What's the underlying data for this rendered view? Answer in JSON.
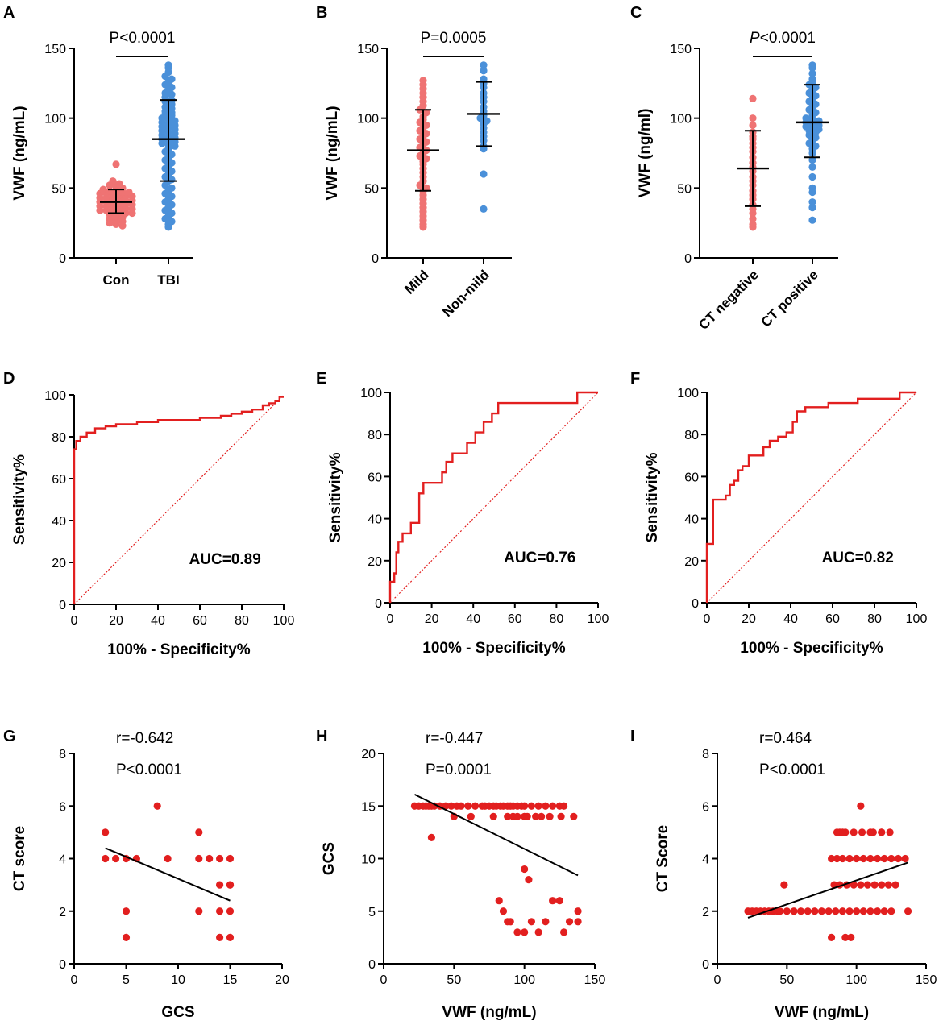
{
  "colors": {
    "red_dot": "#EF7373",
    "blue_dot": "#4A90D9",
    "roc_line": "#E21F1F",
    "scatter_dot": "#E21F1F",
    "axis": "#000000"
  },
  "chart_data": [
    {
      "panel": "A",
      "type": "scatter",
      "title": "P<0.0001",
      "title_italic_p": false,
      "xlabel": "",
      "ylabel": "VWF  (ng/mL)",
      "ylim": [
        0,
        150
      ],
      "yticks": [
        0,
        50,
        100,
        150
      ],
      "categories": [
        "Con",
        "TBI"
      ],
      "tick_rotate": false,
      "groups": [
        {
          "name": "Con",
          "color": "red",
          "mean": 40,
          "sd_low": 32,
          "sd_high": 49,
          "values": [
            67,
            55,
            53,
            52,
            51,
            50,
            49,
            48,
            48,
            47,
            47,
            46,
            46,
            45,
            45,
            44,
            44,
            43,
            43,
            42,
            42,
            41,
            41,
            40,
            40,
            39,
            39,
            38,
            38,
            37,
            37,
            36,
            36,
            35,
            35,
            34,
            34,
            33,
            33,
            32,
            32,
            31,
            30,
            29,
            28,
            27,
            26,
            25,
            24,
            23
          ]
        },
        {
          "name": "TBI",
          "color": "blue",
          "mean": 85,
          "sd_low": 55,
          "sd_high": 113,
          "values": [
            138,
            136,
            133,
            130,
            128,
            126,
            124,
            122,
            120,
            118,
            117,
            115,
            113,
            112,
            110,
            108,
            107,
            105,
            104,
            103,
            102,
            100,
            99,
            98,
            97,
            96,
            95,
            94,
            93,
            92,
            91,
            90,
            89,
            88,
            87,
            86,
            85,
            84,
            83,
            82,
            81,
            80,
            78,
            76,
            74,
            72,
            70,
            68,
            66,
            64,
            62,
            60,
            58,
            56,
            55,
            52,
            50,
            48,
            46,
            44,
            42,
            40,
            38,
            36,
            34,
            32,
            30,
            28,
            26,
            24,
            22
          ]
        }
      ]
    },
    {
      "panel": "B",
      "type": "scatter",
      "title": "P=0.0005",
      "title_italic_p": false,
      "xlabel": "",
      "ylabel": "VWF  (ng/mL)",
      "ylim": [
        0,
        150
      ],
      "yticks": [
        0,
        50,
        100,
        150
      ],
      "categories": [
        "Mild",
        "Non-mild"
      ],
      "tick_rotate": true,
      "groups": [
        {
          "name": "Mild",
          "color": "red",
          "mean": 77,
          "sd_low": 48,
          "sd_high": 106,
          "values": [
            127,
            124,
            121,
            118,
            115,
            112,
            109,
            106,
            104,
            101,
            99,
            97,
            95,
            93,
            91,
            89,
            87,
            85,
            83,
            81,
            79,
            77,
            75,
            73,
            71,
            69,
            67,
            64,
            61,
            58,
            55,
            52,
            50,
            48,
            45,
            42,
            39,
            36,
            33,
            30,
            27,
            24,
            22
          ]
        },
        {
          "name": "Non-mild",
          "color": "blue",
          "mean": 103,
          "sd_low": 80,
          "sd_high": 126,
          "values": [
            138,
            134,
            128,
            125,
            122,
            118,
            115,
            112,
            108,
            105,
            102,
            100,
            98,
            96,
            93,
            90,
            87,
            84,
            80,
            78,
            60,
            35
          ]
        }
      ]
    },
    {
      "panel": "C",
      "type": "scatter",
      "title": "P<0.0001",
      "title_italic_p": true,
      "xlabel": "",
      "ylabel": "VWF  (ng/ml)",
      "ylim": [
        0,
        150
      ],
      "yticks": [
        0,
        50,
        100,
        150
      ],
      "categories": [
        "CT negative",
        "CT positive"
      ],
      "tick_rotate": true,
      "groups": [
        {
          "name": "CT negative",
          "color": "red",
          "mean": 64,
          "sd_low": 37,
          "sd_high": 91,
          "values": [
            114,
            100,
            95,
            90,
            87,
            85,
            82,
            79,
            76,
            72,
            68,
            65,
            62,
            58,
            55,
            52,
            48,
            45,
            42,
            38,
            35,
            32,
            28,
            24,
            22
          ]
        },
        {
          "name": "CT positive",
          "color": "blue",
          "mean": 97,
          "sd_low": 72,
          "sd_high": 124,
          "values": [
            138,
            136,
            132,
            128,
            126,
            124,
            122,
            120,
            118,
            116,
            114,
            112,
            110,
            108,
            106,
            104,
            102,
            100,
            99,
            98,
            97,
            96,
            95,
            94,
            93,
            92,
            91,
            90,
            88,
            86,
            84,
            82,
            80,
            78,
            75,
            70,
            65,
            58,
            50,
            47,
            40,
            36,
            27
          ]
        }
      ]
    },
    {
      "panel": "D",
      "type": "line",
      "annotation": "AUC=0.89",
      "xlabel": "100% - Specificity%",
      "ylabel": "Sensitivity%",
      "xlim": [
        0,
        100
      ],
      "ylim": [
        0,
        100
      ],
      "xticks": [
        0,
        20,
        40,
        60,
        80,
        100
      ],
      "yticks": [
        0,
        20,
        40,
        60,
        80,
        100
      ],
      "x": [
        0,
        0,
        1,
        1,
        3,
        3,
        6,
        6,
        10,
        10,
        15,
        15,
        20,
        20,
        30,
        30,
        40,
        40,
        60,
        60,
        70,
        70,
        75,
        75,
        80,
        80,
        85,
        85,
        90,
        90,
        93,
        93,
        96,
        96,
        98,
        98,
        100
      ],
      "y": [
        0,
        74,
        74,
        78,
        78,
        80,
        80,
        82,
        82,
        84,
        84,
        85,
        85,
        86,
        86,
        87,
        87,
        88,
        88,
        89,
        89,
        90,
        90,
        91,
        91,
        92,
        92,
        93,
        93,
        95,
        95,
        96,
        96,
        97,
        97,
        99,
        99
      ]
    },
    {
      "panel": "E",
      "type": "line",
      "annotation": "AUC=0.76",
      "xlabel": "100% - Specificity%",
      "ylabel": "Sensitivity%",
      "xlim": [
        0,
        100
      ],
      "ylim": [
        0,
        100
      ],
      "xticks": [
        0,
        20,
        40,
        60,
        80,
        100
      ],
      "yticks": [
        0,
        20,
        40,
        60,
        80,
        100
      ],
      "x": [
        0,
        0,
        2,
        2,
        3,
        3,
        4,
        4,
        6,
        6,
        10,
        10,
        14,
        14,
        16,
        16,
        25,
        25,
        27,
        27,
        30,
        30,
        37,
        37,
        41,
        41,
        45,
        45,
        49,
        49,
        52,
        52,
        90,
        90,
        100
      ],
      "y": [
        0,
        10,
        10,
        14,
        14,
        24,
        24,
        29,
        29,
        33,
        33,
        38,
        38,
        52,
        52,
        57,
        57,
        62,
        62,
        67,
        67,
        71,
        71,
        76,
        76,
        81,
        81,
        86,
        86,
        90,
        90,
        95,
        95,
        100,
        100
      ]
    },
    {
      "panel": "F",
      "type": "line",
      "annotation": "AUC=0.82",
      "xlabel": "100% - Specificity%",
      "ylabel": "Sensitivity%",
      "xlim": [
        0,
        100
      ],
      "ylim": [
        0,
        100
      ],
      "xticks": [
        0,
        20,
        40,
        60,
        80,
        100
      ],
      "yticks": [
        0,
        20,
        40,
        60,
        80,
        100
      ],
      "x": [
        0,
        0,
        3,
        3,
        9,
        9,
        11,
        11,
        13,
        13,
        15,
        15,
        17,
        17,
        20,
        20,
        27,
        27,
        30,
        30,
        34,
        34,
        38,
        38,
        41,
        41,
        43,
        43,
        47,
        47,
        58,
        58,
        72,
        72,
        92,
        92,
        100
      ],
      "y": [
        0,
        28,
        28,
        49,
        49,
        51,
        51,
        56,
        56,
        58,
        58,
        63,
        63,
        65,
        65,
        70,
        70,
        74,
        74,
        77,
        77,
        79,
        79,
        81,
        81,
        86,
        86,
        91,
        91,
        93,
        93,
        95,
        95,
        97,
        97,
        100,
        100
      ]
    },
    {
      "panel": "G",
      "type": "scatter",
      "annotation_r": "r=-0.642",
      "annotation_p": "P<0.0001",
      "xlabel": "GCS",
      "ylabel": "CT score",
      "xlim": [
        0,
        20
      ],
      "ylim": [
        0,
        8
      ],
      "xticks": [
        0,
        5,
        10,
        15,
        20
      ],
      "yticks": [
        0,
        2,
        4,
        6,
        8
      ],
      "x": [
        3,
        3,
        4,
        5,
        5,
        5,
        6,
        8,
        9,
        12,
        12,
        12,
        13,
        14,
        14,
        14,
        14,
        15,
        15,
        15,
        15,
        15
      ],
      "y": [
        5,
        4,
        4,
        4,
        2,
        1,
        4,
        6,
        4,
        5,
        4,
        2,
        4,
        4,
        3,
        2,
        1,
        4,
        3,
        2,
        1,
        3
      ],
      "fit": {
        "x": [
          3,
          15
        ],
        "y": [
          4.4,
          2.4
        ]
      }
    },
    {
      "panel": "H",
      "type": "scatter",
      "annotation_r": "r=-0.447",
      "annotation_p": "P=0.0001",
      "xlabel": "VWF (ng/mL)",
      "ylabel": "GCS",
      "xlim": [
        0,
        150
      ],
      "ylim": [
        0,
        20
      ],
      "xticks": [
        0,
        50,
        100,
        150
      ],
      "yticks": [
        0,
        5,
        10,
        15,
        20
      ],
      "x": [
        22,
        25,
        28,
        30,
        32,
        34,
        36,
        40,
        44,
        48,
        52,
        55,
        60,
        65,
        70,
        72,
        75,
        78,
        80,
        83,
        85,
        88,
        90,
        92,
        95,
        98,
        100,
        105,
        110,
        115,
        120,
        125,
        128,
        34,
        50,
        62,
        78,
        88,
        92,
        95,
        100,
        102,
        108,
        112,
        118,
        126,
        135,
        100,
        103,
        82,
        85,
        88,
        90,
        95,
        100,
        105,
        110,
        115,
        120,
        125,
        128,
        132,
        138,
        138
      ],
      "y": [
        15,
        15,
        15,
        15,
        15,
        15,
        15,
        15,
        15,
        15,
        15,
        15,
        15,
        15,
        15,
        15,
        15,
        15,
        15,
        15,
        15,
        15,
        15,
        15,
        15,
        15,
        15,
        15,
        15,
        15,
        15,
        15,
        15,
        12,
        14,
        14,
        14,
        14,
        14,
        14,
        14,
        14,
        14,
        14,
        14,
        14,
        14,
        9,
        8,
        6,
        5,
        4,
        4,
        3,
        3,
        4,
        3,
        4,
        6,
        6,
        3,
        4,
        5,
        4
      ],
      "fit": {
        "x": [
          22,
          138
        ],
        "y": [
          16.1,
          8.4
        ]
      }
    },
    {
      "panel": "I",
      "type": "scatter",
      "annotation_r": "r=0.464",
      "annotation_p": "P<0.0001",
      "xlabel": "VWF (ng/mL)",
      "ylabel": "CT Score",
      "xlim": [
        0,
        150
      ],
      "ylim": [
        0,
        8
      ],
      "xticks": [
        0,
        50,
        100,
        150
      ],
      "yticks": [
        0,
        2,
        4,
        6,
        8
      ],
      "x": [
        22,
        25,
        28,
        31,
        34,
        37,
        40,
        43,
        45,
        50,
        55,
        60,
        65,
        70,
        75,
        80,
        85,
        90,
        95,
        100,
        105,
        110,
        115,
        120,
        125,
        137,
        48,
        84,
        88,
        93,
        98,
        103,
        108,
        113,
        118,
        123,
        128,
        82,
        86,
        90,
        95,
        100,
        105,
        110,
        115,
        120,
        125,
        130,
        135,
        88,
        92,
        98,
        104,
        112,
        118,
        124,
        86,
        90,
        103,
        110,
        118,
        82,
        92,
        96
      ],
      "y": [
        2,
        2,
        2,
        2,
        2,
        2,
        2,
        2,
        2,
        2,
        2,
        2,
        2,
        2,
        2,
        2,
        2,
        2,
        2,
        2,
        2,
        2,
        2,
        2,
        2,
        2,
        3,
        3,
        3,
        3,
        3,
        3,
        3,
        3,
        3,
        3,
        3,
        4,
        4,
        4,
        4,
        4,
        4,
        4,
        4,
        4,
        4,
        4,
        4,
        5,
        5,
        5,
        5,
        5,
        5,
        5,
        5,
        5,
        6,
        5,
        5,
        1,
        1,
        1
      ],
      "fit": {
        "x": [
          22,
          137
        ],
        "y": [
          1.75,
          3.85
        ]
      }
    }
  ]
}
